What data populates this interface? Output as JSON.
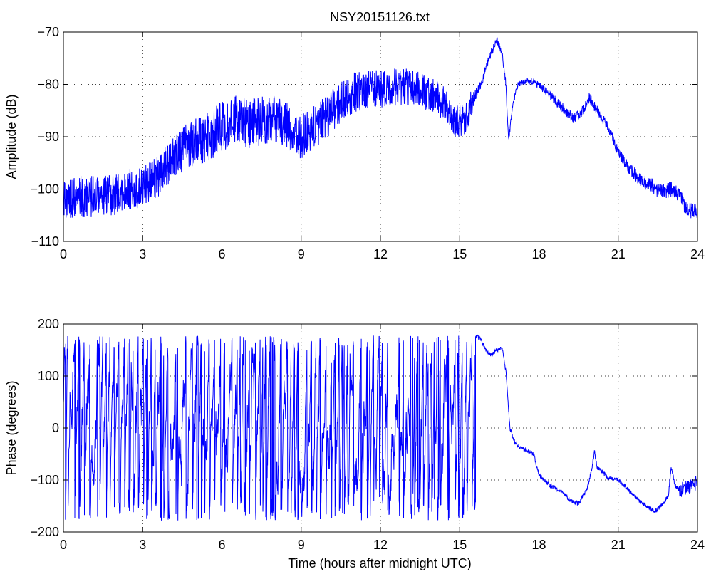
{
  "figure": {
    "title": "NSY20151126.txt",
    "xlabel": "Time (hours after midnight UTC)"
  },
  "chart_data": [
    {
      "type": "line",
      "title": "NSY20151126.txt",
      "xlabel": "",
      "ylabel": "Amplitude (dB)",
      "xlim": [
        0,
        24
      ],
      "ylim": [
        -110,
        -70
      ],
      "xticks": [
        0,
        3,
        6,
        9,
        12,
        15,
        18,
        21,
        24
      ],
      "yticks": [
        -110,
        -100,
        -90,
        -80,
        -70
      ],
      "grid": true,
      "series_color": "#0000ff",
      "noise_envelope": [
        [
          0.0,
          4
        ],
        [
          4.0,
          4
        ],
        [
          6.0,
          5
        ],
        [
          10.5,
          4
        ],
        [
          13.0,
          3.5
        ],
        [
          15.4,
          3
        ],
        [
          15.6,
          1
        ],
        [
          17.0,
          0.5
        ],
        [
          19.0,
          1
        ],
        [
          21.0,
          1
        ],
        [
          22.0,
          1.5
        ],
        [
          24.0,
          1.5
        ]
      ],
      "series": [
        {
          "x": [
            0.0,
            0.5,
            1.0,
            1.5,
            2.0,
            2.5,
            3.0,
            3.5,
            4.0,
            4.3,
            4.7,
            5.0,
            5.5,
            6.0,
            6.5,
            7.0,
            7.5,
            8.0,
            8.5,
            8.8,
            9.0,
            9.5,
            10.0,
            10.5,
            11.0,
            11.5,
            12.0,
            12.5,
            13.0,
            13.5,
            14.0,
            14.5,
            14.8,
            15.2,
            15.5,
            15.8,
            16.1,
            16.4,
            16.6,
            16.75,
            16.85,
            17.0,
            17.2,
            17.5,
            17.8,
            18.2,
            18.6,
            19.0,
            19.3,
            19.6,
            19.9,
            20.2,
            20.6,
            21.0,
            21.4,
            21.8,
            22.3,
            22.6,
            23.0,
            23.3,
            23.6,
            24.0
          ],
          "y": [
            -102,
            -101.5,
            -101.5,
            -101,
            -101,
            -100,
            -99.5,
            -98,
            -95,
            -93.5,
            -91.5,
            -91,
            -90,
            -88,
            -87,
            -87.5,
            -87,
            -86.5,
            -88,
            -90,
            -90,
            -88,
            -86,
            -83.5,
            -81.5,
            -81,
            -81,
            -80.5,
            -80.5,
            -81,
            -82,
            -84,
            -87,
            -87,
            -83,
            -80,
            -75,
            -71.5,
            -74,
            -80,
            -91,
            -84,
            -80,
            -79.5,
            -79.5,
            -81,
            -83,
            -85,
            -86.5,
            -85.5,
            -82.5,
            -85,
            -88,
            -93,
            -96,
            -98,
            -99.5,
            -100.5,
            -100,
            -101,
            -104,
            -104.5
          ]
        }
      ]
    },
    {
      "type": "line",
      "title": "",
      "xlabel": "Time (hours after midnight UTC)",
      "ylabel": "Phase (degrees)",
      "xlim": [
        0,
        24
      ],
      "ylim": [
        -200,
        200
      ],
      "xticks": [
        0,
        3,
        6,
        9,
        12,
        15,
        18,
        21,
        24
      ],
      "yticks": [
        -200,
        -100,
        0,
        100,
        200
      ],
      "grid": true,
      "series_color": "#0000ff",
      "wrapped_until_hours": 15.6,
      "wrapped_range": [
        -178,
        178
      ],
      "series": [
        {
          "x": [
            15.6,
            15.8,
            16.0,
            16.2,
            16.4,
            16.6,
            16.75,
            16.9,
            17.1,
            17.4,
            17.8,
            18.0,
            18.4,
            18.8,
            19.2,
            19.5,
            19.8,
            20.0,
            20.1,
            20.2,
            20.6,
            21.0,
            21.4,
            21.8,
            22.2,
            22.4,
            22.7,
            22.9,
            23.0,
            23.15,
            23.3,
            23.6,
            24.0
          ],
          "y": [
            178,
            170,
            150,
            140,
            150,
            155,
            110,
            0,
            -30,
            -40,
            -50,
            -90,
            -110,
            -120,
            -140,
            -145,
            -120,
            -80,
            -45,
            -75,
            -95,
            -100,
            -120,
            -140,
            -155,
            -160,
            -145,
            -130,
            -75,
            -110,
            -120,
            -115,
            -105
          ]
        }
      ]
    }
  ]
}
